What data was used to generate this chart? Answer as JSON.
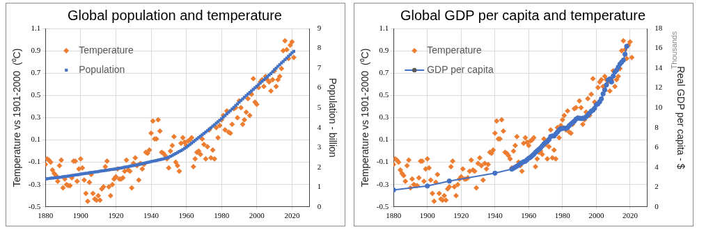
{
  "chart_data": [
    {
      "type": "scatter",
      "title": "Global population and temperature",
      "ylabel": "Temperature vs 1901-2000  (⁰C)",
      "y2label": "Population - billion",
      "x": [
        1880,
        1881,
        1882,
        1883,
        1884,
        1885,
        1886,
        1887,
        1888,
        1889,
        1890,
        1891,
        1892,
        1893,
        1894,
        1895,
        1896,
        1897,
        1898,
        1899,
        1900,
        1901,
        1902,
        1903,
        1904,
        1905,
        1906,
        1907,
        1908,
        1909,
        1910,
        1911,
        1912,
        1913,
        1914,
        1915,
        1916,
        1917,
        1918,
        1919,
        1920,
        1921,
        1922,
        1923,
        1924,
        1925,
        1926,
        1927,
        1928,
        1929,
        1930,
        1931,
        1932,
        1933,
        1934,
        1935,
        1936,
        1937,
        1938,
        1939,
        1940,
        1941,
        1942,
        1943,
        1944,
        1945,
        1946,
        1947,
        1948,
        1949,
        1950,
        1951,
        1952,
        1953,
        1954,
        1955,
        1956,
        1957,
        1958,
        1959,
        1960,
        1961,
        1962,
        1963,
        1964,
        1965,
        1966,
        1967,
        1968,
        1969,
        1970,
        1971,
        1972,
        1973,
        1974,
        1975,
        1976,
        1977,
        1978,
        1979,
        1980,
        1981,
        1982,
        1983,
        1984,
        1985,
        1986,
        1987,
        1988,
        1989,
        1990,
        1991,
        1992,
        1993,
        1994,
        1995,
        1996,
        1997,
        1998,
        1999,
        2000,
        2001,
        2002,
        2003,
        2004,
        2005,
        2006,
        2007,
        2008,
        2009,
        2010,
        2011,
        2012,
        2013,
        2014,
        2015,
        2016,
        2017,
        2018,
        2019,
        2020,
        2021
      ],
      "series": [
        {
          "name": "Temperature",
          "marker": "diamond",
          "color": "#ed7d31",
          "values": [
            -0.12,
            -0.07,
            -0.08,
            -0.1,
            -0.17,
            -0.2,
            -0.22,
            -0.27,
            -0.13,
            -0.08,
            -0.33,
            -0.25,
            -0.3,
            -0.31,
            -0.31,
            -0.24,
            -0.09,
            -0.09,
            -0.27,
            -0.16,
            -0.07,
            -0.15,
            -0.26,
            -0.38,
            -0.45,
            -0.28,
            -0.21,
            -0.38,
            -0.43,
            -0.44,
            -0.4,
            -0.44,
            -0.34,
            -0.32,
            -0.14,
            -0.09,
            -0.32,
            -0.4,
            -0.3,
            -0.25,
            -0.23,
            -0.16,
            -0.25,
            -0.25,
            -0.24,
            -0.18,
            -0.08,
            -0.17,
            -0.18,
            -0.33,
            -0.11,
            -0.06,
            -0.13,
            -0.26,
            -0.11,
            -0.16,
            -0.12,
            -0.01,
            -0.02,
            0.01,
            0.16,
            0.27,
            0.11,
            0.11,
            0.28,
            0.18,
            -0.01,
            -0.02,
            -0.04,
            -0.07,
            -0.15,
            0.0,
            0.05,
            0.13,
            -0.1,
            -0.13,
            -0.18,
            0.07,
            0.12,
            0.08,
            0.05,
            0.09,
            0.1,
            0.12,
            -0.14,
            -0.07,
            -0.01,
            0.0,
            -0.03,
            0.11,
            0.06,
            -0.07,
            0.04,
            0.19,
            -0.06,
            0.01,
            -0.07,
            0.21,
            0.12,
            0.23,
            0.28,
            0.32,
            0.19,
            0.36,
            0.17,
            0.16,
            0.24,
            0.38,
            0.39,
            0.3,
            0.45,
            0.39,
            0.24,
            0.28,
            0.35,
            0.47,
            0.32,
            0.51,
            0.65,
            0.44,
            0.42,
            0.57,
            0.62,
            0.64,
            0.58,
            0.67,
            0.64,
            0.62,
            0.54,
            0.64,
            0.72,
            0.58,
            0.64,
            0.67,
            0.74,
            0.9,
            0.99,
            0.91,
            0.83,
            0.95,
            0.98,
            0.84
          ]
        },
        {
          "name": "Population",
          "marker": "square",
          "axis": "y2",
          "color": "#4472c4",
          "values": [
            1.41,
            1.42,
            1.43,
            1.44,
            1.45,
            1.46,
            1.47,
            1.48,
            1.49,
            1.5,
            1.52,
            1.53,
            1.54,
            1.55,
            1.57,
            1.58,
            1.59,
            1.61,
            1.62,
            1.63,
            1.65,
            1.66,
            1.68,
            1.69,
            1.7,
            1.72,
            1.73,
            1.74,
            1.76,
            1.77,
            1.78,
            1.8,
            1.81,
            1.82,
            1.84,
            1.85,
            1.86,
            1.88,
            1.89,
            1.9,
            1.92,
            1.93,
            1.95,
            1.96,
            1.98,
            2.0,
            2.01,
            2.03,
            2.05,
            2.07,
            2.08,
            2.1,
            2.12,
            2.14,
            2.16,
            2.18,
            2.2,
            2.22,
            2.24,
            2.26,
            2.28,
            2.3,
            2.32,
            2.34,
            2.36,
            2.38,
            2.4,
            2.42,
            2.45,
            2.47,
            2.5,
            2.55,
            2.59,
            2.64,
            2.69,
            2.74,
            2.79,
            2.84,
            2.89,
            2.95,
            3.0,
            3.07,
            3.14,
            3.21,
            3.28,
            3.35,
            3.42,
            3.49,
            3.56,
            3.63,
            3.7,
            3.77,
            3.84,
            3.92,
            3.99,
            4.07,
            4.14,
            4.22,
            4.29,
            4.37,
            4.45,
            4.53,
            4.61,
            4.69,
            4.77,
            4.85,
            4.94,
            5.02,
            5.11,
            5.19,
            5.28,
            5.37,
            5.45,
            5.53,
            5.61,
            5.69,
            5.77,
            5.85,
            5.93,
            6.01,
            6.09,
            6.17,
            6.25,
            6.33,
            6.41,
            6.49,
            6.57,
            6.65,
            6.73,
            6.81,
            6.92,
            7.0,
            7.09,
            7.17,
            7.26,
            7.34,
            7.43,
            7.51,
            7.6,
            7.68,
            7.77,
            7.85
          ]
        }
      ],
      "xlim": [
        1880,
        2030
      ],
      "xticks": [
        1880,
        1900,
        1920,
        1940,
        1960,
        1980,
        2000,
        2020
      ],
      "ylim": [
        -0.5,
        1.1
      ],
      "yticks": [
        -0.5,
        -0.3,
        -0.1,
        0.1,
        0.3,
        0.5,
        0.7,
        0.9,
        1.1
      ],
      "y2lim": [
        0,
        9
      ],
      "y2ticks": [
        0,
        1,
        2,
        3,
        4,
        5,
        6,
        7,
        8,
        9
      ],
      "grid": true,
      "legend": "top left"
    },
    {
      "type": "scatter",
      "title": "Global GDP per capita and temperature",
      "ylabel": "Temperature vs 1901-2000  (⁰C)",
      "y2label": "Real GDP per capita - $",
      "annotations": [
        "Thousands"
      ],
      "x": [
        1880,
        1881,
        1882,
        1883,
        1884,
        1885,
        1886,
        1887,
        1888,
        1889,
        1890,
        1891,
        1892,
        1893,
        1894,
        1895,
        1896,
        1897,
        1898,
        1899,
        1900,
        1901,
        1902,
        1903,
        1904,
        1905,
        1906,
        1907,
        1908,
        1909,
        1910,
        1911,
        1912,
        1913,
        1914,
        1915,
        1916,
        1917,
        1918,
        1919,
        1920,
        1921,
        1922,
        1923,
        1924,
        1925,
        1926,
        1927,
        1928,
        1929,
        1930,
        1931,
        1932,
        1933,
        1934,
        1935,
        1936,
        1937,
        1938,
        1939,
        1940,
        1941,
        1942,
        1943,
        1944,
        1945,
        1946,
        1947,
        1948,
        1949,
        1950,
        1951,
        1952,
        1953,
        1954,
        1955,
        1956,
        1957,
        1958,
        1959,
        1960,
        1961,
        1962,
        1963,
        1964,
        1965,
        1966,
        1967,
        1968,
        1969,
        1970,
        1971,
        1972,
        1973,
        1974,
        1975,
        1976,
        1977,
        1978,
        1979,
        1980,
        1981,
        1982,
        1983,
        1984,
        1985,
        1986,
        1987,
        1988,
        1989,
        1990,
        1991,
        1992,
        1993,
        1994,
        1995,
        1996,
        1997,
        1998,
        1999,
        2000,
        2001,
        2002,
        2003,
        2004,
        2005,
        2006,
        2007,
        2008,
        2009,
        2010,
        2011,
        2012,
        2013,
        2014,
        2015,
        2016,
        2017,
        2018,
        2019,
        2020,
        2021
      ],
      "series": [
        {
          "name": "Temperature",
          "marker": "diamond",
          "color": "#ed7d31",
          "values": [
            -0.12,
            -0.07,
            -0.08,
            -0.1,
            -0.17,
            -0.2,
            -0.22,
            -0.27,
            -0.13,
            -0.08,
            -0.33,
            -0.25,
            -0.3,
            -0.31,
            -0.31,
            -0.24,
            -0.09,
            -0.09,
            -0.27,
            -0.16,
            -0.07,
            -0.15,
            -0.26,
            -0.38,
            -0.45,
            -0.28,
            -0.21,
            -0.38,
            -0.43,
            -0.44,
            -0.4,
            -0.44,
            -0.34,
            -0.32,
            -0.14,
            -0.09,
            -0.32,
            -0.4,
            -0.3,
            -0.25,
            -0.23,
            -0.16,
            -0.25,
            -0.25,
            -0.24,
            -0.18,
            -0.08,
            -0.17,
            -0.18,
            -0.33,
            -0.11,
            -0.06,
            -0.13,
            -0.26,
            -0.11,
            -0.16,
            -0.12,
            -0.01,
            -0.02,
            0.01,
            0.16,
            0.27,
            0.11,
            0.11,
            0.28,
            0.18,
            -0.01,
            -0.02,
            -0.04,
            -0.07,
            -0.15,
            0.0,
            0.05,
            0.13,
            -0.1,
            -0.13,
            -0.18,
            0.07,
            0.12,
            0.08,
            0.05,
            0.09,
            0.1,
            0.12,
            -0.14,
            -0.07,
            -0.01,
            0.0,
            -0.03,
            0.11,
            0.06,
            -0.07,
            0.04,
            0.19,
            -0.06,
            0.01,
            -0.07,
            0.21,
            0.12,
            0.23,
            0.28,
            0.32,
            0.19,
            0.36,
            0.17,
            0.16,
            0.24,
            0.38,
            0.39,
            0.3,
            0.45,
            0.39,
            0.24,
            0.28,
            0.35,
            0.47,
            0.32,
            0.51,
            0.65,
            0.44,
            0.42,
            0.57,
            0.62,
            0.64,
            0.58,
            0.67,
            0.64,
            0.62,
            0.54,
            0.64,
            0.72,
            0.58,
            0.64,
            0.67,
            0.74,
            0.9,
            0.99,
            0.91,
            0.83,
            0.95,
            0.98,
            0.84
          ]
        },
        {
          "name": "GDP per capita",
          "type": "line",
          "marker": "circle",
          "axis": "y2",
          "color": "#4472c4",
          "x": [
            1880,
            1900,
            1913,
            1940,
            1950,
            1951,
            1952,
            1953,
            1954,
            1955,
            1956,
            1957,
            1958,
            1959,
            1960,
            1961,
            1962,
            1963,
            1964,
            1965,
            1966,
            1967,
            1968,
            1969,
            1970,
            1971,
            1972,
            1973,
            1974,
            1975,
            1976,
            1977,
            1978,
            1979,
            1980,
            1981,
            1982,
            1983,
            1984,
            1985,
            1986,
            1987,
            1988,
            1989,
            1990,
            1991,
            1992,
            1993,
            1994,
            1995,
            1996,
            1997,
            1998,
            1999,
            2000,
            2001,
            2002,
            2003,
            2004,
            2005,
            2006,
            2007,
            2008,
            2009,
            2010,
            2011,
            2012,
            2013,
            2014,
            2015,
            2016,
            2017,
            2018
          ],
          "values": [
            1.7,
            2.1,
            2.6,
            3.4,
            3.8,
            3.9,
            4.0,
            4.1,
            4.2,
            4.35,
            4.45,
            4.55,
            4.6,
            4.75,
            4.9,
            5.0,
            5.15,
            5.3,
            5.5,
            5.65,
            5.8,
            5.95,
            6.15,
            6.35,
            6.5,
            6.6,
            6.8,
            7.1,
            7.15,
            7.15,
            7.35,
            7.55,
            7.75,
            7.9,
            7.9,
            7.95,
            7.9,
            8.0,
            8.2,
            8.35,
            8.5,
            8.65,
            8.85,
            8.95,
            8.95,
            8.9,
            8.95,
            8.95,
            9.1,
            9.25,
            9.45,
            9.65,
            9.75,
            9.95,
            10.3,
            10.4,
            10.6,
            10.9,
            11.4,
            11.8,
            12.3,
            12.8,
            12.9,
            12.6,
            13.2,
            13.6,
            13.8,
            14.1,
            14.4,
            14.6,
            14.8,
            15.4,
            16.2
          ]
        }
      ],
      "xlim": [
        1880,
        2030
      ],
      "xticks": [
        1880,
        1900,
        1920,
        1940,
        1960,
        1980,
        2000,
        2020
      ],
      "ylim": [
        -0.5,
        1.1
      ],
      "yticks": [
        -0.5,
        -0.3,
        -0.1,
        0.1,
        0.3,
        0.5,
        0.7,
        0.9,
        1.1
      ],
      "y2lim": [
        0,
        18
      ],
      "y2ticks": [
        0,
        2,
        4,
        6,
        8,
        10,
        12,
        14,
        16,
        18
      ],
      "grid": true,
      "legend": "top left"
    }
  ]
}
